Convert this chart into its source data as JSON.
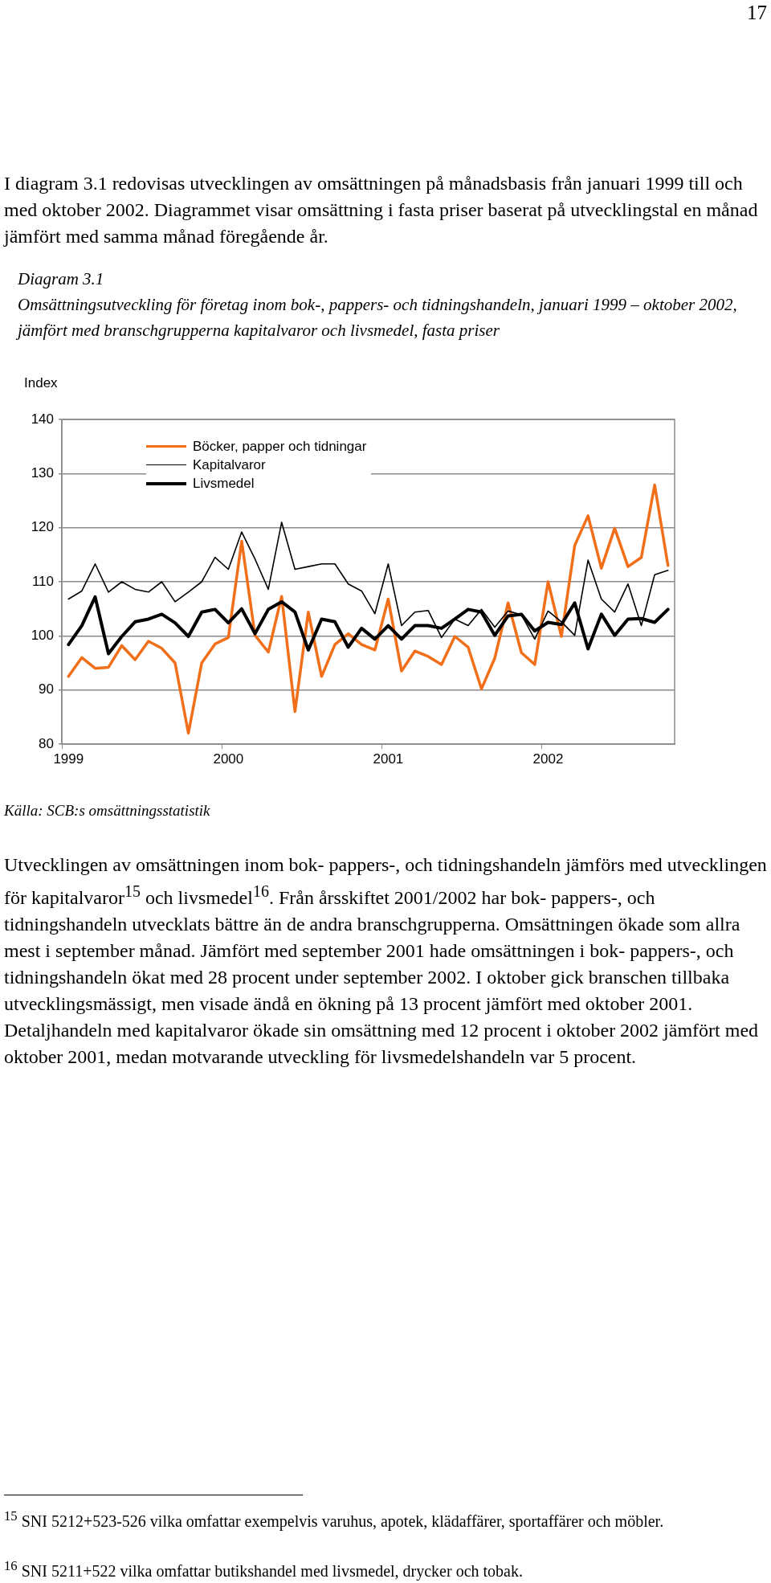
{
  "chart_data": {
    "type": "line",
    "title": "Diagram 3.1",
    "subtitle": "Omsättningsutveckling för företag inom bok-, pappers- och tidningshandeln, januari 1999 – oktober 2002, jämfört med branschgrupperna kapitalvaror och livsmedel, fasta priser",
    "ylabel": "Index",
    "annotations": [
      "17",
      "I diagram 3.1 redovisas utvecklingen av omsättningen på månadsbasis från januari 1999 till och med oktober 2002. Diagrammet visar omsättning i fasta priser baserat på utvecklingstal en månad jämfört med samma månad föregående år.",
      "Källa: SCB:s omsättningsstatistik",
      "Utvecklingen av omsättningen inom bok- pappers-, och tidningshandeln jämförs med utvecklingen för kapitalvaror$^{15}$ och livsmedel$^{16}$. Från årsskiftet 2001/2002 har bok- pappers-, och tidningshandeln utvecklats bättre än de andra branschgrupperna. Omsättningen ökade som allra mest i september månad. Jämfört med september 2001 hade omsättningen i bok- pappers-, och tidningshandeln ökat med 28 procent under september 2002. I oktober gick branschen tillbaka utvecklingsmässigt, men visade ändå en ökning på 13 procent jämfört med oktober 2001. Detaljhandeln med kapitalvaror ökade sin omsättning med 12 procent i oktober 2002 jämfört med oktober 2001, medan motvarande utveckling för livsmedelshandeln var 5 procent.",
      "$^{15}$ SNI 5212+523-526 vilka omfattar exempelvis varuhus, apotek, klädaffärer, sportaffärer och möbler.",
      "$^{16}$ SNI 5211+522 vilka omfattar butikshandel med livsmedel, drycker och tobak."
    ],
    "categories": [
      "1999",
      null,
      null,
      null,
      null,
      null,
      null,
      null,
      null,
      null,
      null,
      null,
      "2000",
      null,
      null,
      null,
      null,
      null,
      null,
      null,
      null,
      null,
      null,
      null,
      "2001",
      null,
      null,
      null,
      null,
      null,
      null,
      null,
      null,
      null,
      null,
      null,
      "2002",
      null,
      null,
      null,
      null,
      null,
      null,
      null,
      null,
      null
    ],
    "ylim": [
      80,
      140
    ],
    "yticks": [
      80,
      90,
      100,
      110,
      120,
      130,
      140
    ],
    "grid": "y",
    "legend": "top left",
    "marker": "none",
    "line_style": "solid",
    "series": [
      {
        "name": "Böcker, papper och tidningar",
        "color": "#f26f1a",
        "values": [
          92.5,
          96,
          94,
          94.2,
          98.2,
          95.6,
          99,
          97.7,
          95,
          82,
          95,
          98.5,
          99.7,
          117.5,
          100.1,
          97,
          107.3,
          86,
          104.4,
          92.5,
          98.4,
          100.4,
          98.4,
          97.4,
          106.8,
          93.5,
          97.2,
          96.2,
          94.7,
          99.9,
          97.9,
          90.2,
          95.9,
          106.1,
          96.9,
          94.7,
          110,
          99.9,
          116.7,
          122.2,
          112.5,
          119.9,
          112.8,
          114.5,
          127.9,
          113
        ]
      },
      {
        "name": "Kapitalvaror",
        "color": "#000000",
        "values": [
          106.8,
          108.3,
          113.3,
          108.1,
          110,
          108.6,
          108.1,
          110,
          106.3,
          108.1,
          110,
          114.5,
          112.3,
          119.2,
          114.2,
          108.6,
          121,
          112.3,
          112.8,
          113.3,
          113.3,
          109.6,
          108.3,
          104.1,
          113.3,
          101.9,
          104.4,
          104.7,
          99.7,
          103.1,
          101.9,
          104.9,
          101.6,
          104.6,
          103.9,
          99.4,
          104.6,
          102.6,
          100.1,
          114,
          106.8,
          104.4,
          109.6,
          101.9,
          111.3,
          112.1
        ]
      },
      {
        "name": "Livsmedel",
        "color": "#000000",
        "values": [
          98.4,
          101.9,
          107.2,
          96.7,
          99.9,
          102.6,
          103.1,
          104,
          102.4,
          99.9,
          104.4,
          104.9,
          102.4,
          105,
          100.4,
          104.9,
          106.3,
          104.4,
          97.4,
          103.1,
          102.6,
          97.9,
          101.4,
          99.4,
          101.9,
          99.4,
          101.9,
          101.9,
          101.4,
          103.1,
          104.9,
          104.4,
          100.1,
          103.7,
          104,
          100.9,
          102.5,
          102.1,
          106.1,
          97.6,
          104,
          100.1,
          103.1,
          103.2,
          102.5,
          104.9
        ]
      }
    ]
  }
}
